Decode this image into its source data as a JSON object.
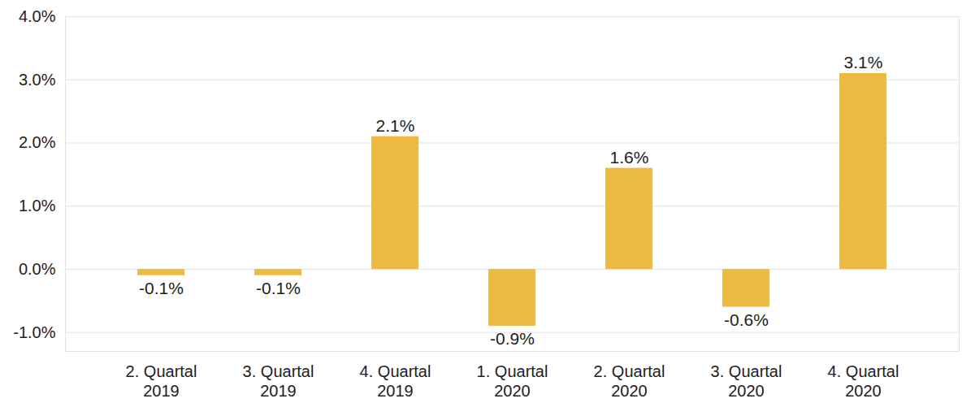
{
  "chart_data": {
    "type": "bar",
    "categories": [
      "2. Quartal\n2019",
      "3. Quartal\n2019",
      "4. Quartal\n2019",
      "1. Quartal\n2020",
      "2. Quartal\n2020",
      "3. Quartal\n2020",
      "4. Quartal\n2020"
    ],
    "values": [
      -0.1,
      -0.1,
      2.1,
      -0.9,
      1.6,
      -0.6,
      3.1
    ],
    "value_labels": [
      "-0.1%",
      "-0.1%",
      "2.1%",
      "-0.9%",
      "1.6%",
      "-0.6%",
      "3.1%"
    ],
    "color": "#ecb944",
    "ylim": [
      -1.3,
      4.0
    ],
    "yticks": [
      {
        "value": -1,
        "label": "-1.0%"
      },
      {
        "value": 0,
        "label": "0.0%"
      },
      {
        "value": 1,
        "label": "1.0%"
      },
      {
        "value": 2,
        "label": "2.0%"
      },
      {
        "value": 3,
        "label": "3.0%"
      },
      {
        "value": 4,
        "label": "4.0%"
      }
    ],
    "grid": true,
    "data_labels": true
  }
}
